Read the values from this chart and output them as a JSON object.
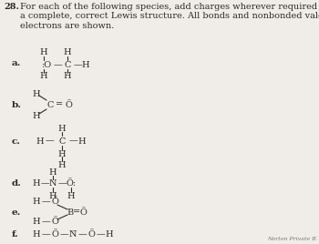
{
  "bg_color": "#f0ede8",
  "title_number": "28.",
  "title_text": "For each of the following species, add charges wherever required to give\na complete, correct Lewis structure. All bonds and nonbonded valence\nelectrons are shown.",
  "watermark": "Norton Private B",
  "font_color": "#2a2a2a",
  "label_color": "#1a1a1a"
}
